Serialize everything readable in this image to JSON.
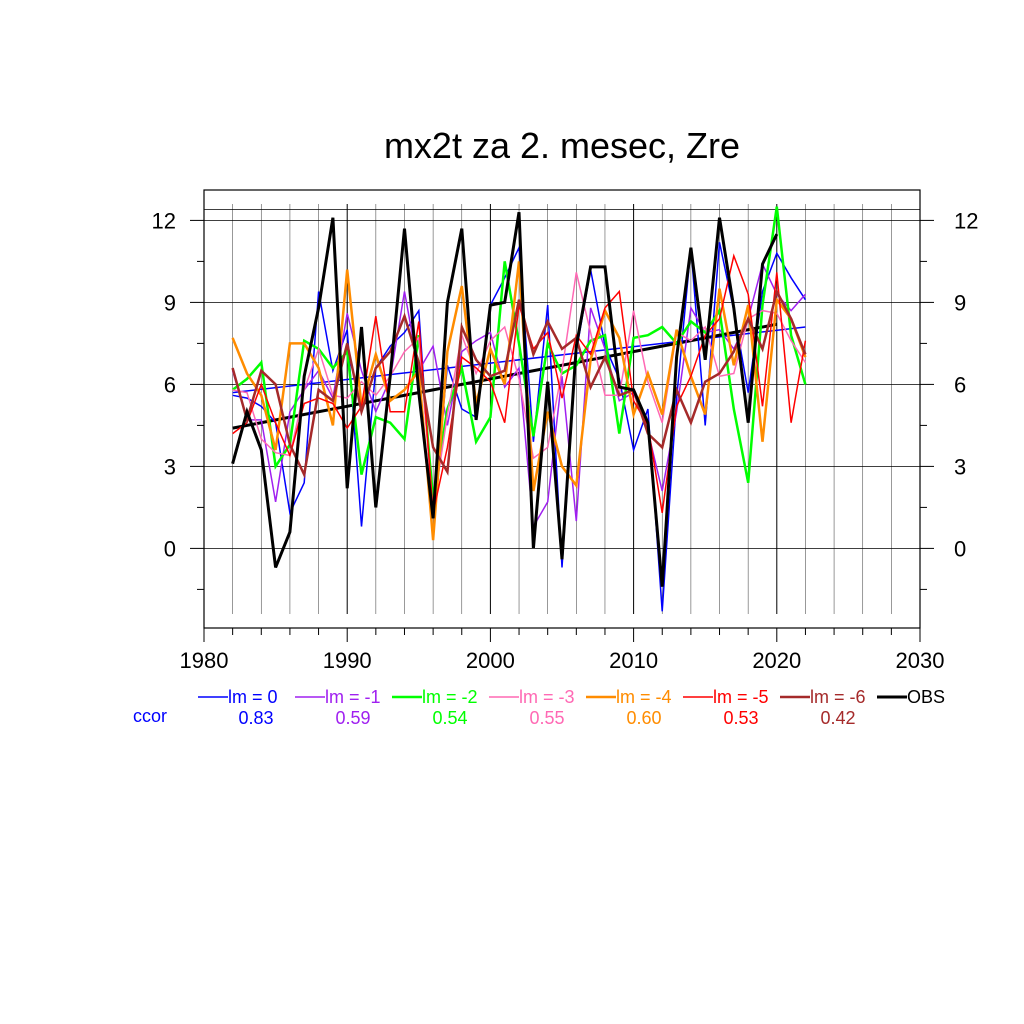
{
  "chart_data": {
    "type": "line",
    "title": "mx2t za 2. mesec, Zre",
    "xlabel": "",
    "ylabel": "",
    "xlim": [
      1980,
      2030
    ],
    "ylim": [
      -2.4,
      12.6
    ],
    "x_ticks": [
      1980,
      1990,
      2000,
      2010,
      2020,
      2030
    ],
    "y_ticks": [
      0,
      3,
      6,
      9,
      12
    ],
    "x_tick_labels": [
      "1980",
      "1990",
      "2000",
      "2010",
      "2020",
      "2030"
    ],
    "y_tick_labels": [
      "0",
      "3",
      "6",
      "9",
      "12"
    ],
    "grid": true,
    "legend_position": "bottom",
    "ccor_label": "ccor",
    "x": [
      1982,
      1983,
      1984,
      1985,
      1986,
      1987,
      1988,
      1989,
      1990,
      1991,
      1992,
      1993,
      1994,
      1995,
      1996,
      1997,
      1998,
      1999,
      2000,
      2001,
      2002,
      2003,
      2004,
      2005,
      2006,
      2007,
      2008,
      2009,
      2010,
      2011,
      2012,
      2013,
      2014,
      2015,
      2016,
      2017,
      2018,
      2019,
      2020,
      2021,
      2022
    ],
    "series": [
      {
        "name": "lm = 0",
        "color": "#0000ff",
        "width": 1.5,
        "ccor": "0.83",
        "values": [
          5.6,
          5.5,
          5.2,
          4.6,
          1.3,
          2.4,
          9.4,
          6.5,
          8.0,
          0.8,
          6.6,
          7.4,
          7.9,
          8.7,
          1.1,
          6.7,
          5.1,
          4.8,
          8.9,
          9.9,
          11.0,
          3.9,
          8.9,
          -0.7,
          7.2,
          10.2,
          7.4,
          6.2,
          3.6,
          5.1,
          -2.3,
          5.5,
          11.0,
          4.5,
          11.2,
          8.7,
          5.7,
          9.4,
          10.8,
          9.9,
          9.1
        ]
      },
      {
        "name": "lm = -1",
        "color": "#a020f0",
        "width": 1.5,
        "ccor": "0.59",
        "values": [
          6.5,
          4.7,
          4.7,
          1.7,
          5.0,
          5.8,
          6.5,
          5.5,
          8.6,
          6.5,
          5.0,
          6.2,
          9.4,
          6.5,
          7.4,
          4.5,
          7.2,
          7.6,
          7.9,
          5.9,
          6.6,
          0.8,
          1.7,
          6.3,
          1.0,
          8.8,
          7.3,
          5.4,
          5.7,
          4.3,
          2.1,
          5.0,
          8.8,
          7.9,
          8.0,
          7.3,
          8.4,
          10.4,
          9.3,
          8.7,
          9.3
        ]
      },
      {
        "name": "lm = -2",
        "color": "#00ff00",
        "width": 2.5,
        "ccor": "0.54",
        "values": [
          5.8,
          6.2,
          6.8,
          3.0,
          3.8,
          7.6,
          7.3,
          6.6,
          7.2,
          2.7,
          4.8,
          4.6,
          4.0,
          7.8,
          1.8,
          5.1,
          6.6,
          3.9,
          4.8,
          10.5,
          7.5,
          4.1,
          7.5,
          6.4,
          6.7,
          7.6,
          7.8,
          4.2,
          7.7,
          7.8,
          8.1,
          7.5,
          8.3,
          7.9,
          8.7,
          5.1,
          2.4,
          8.9,
          12.5,
          7.8,
          6.0
        ]
      },
      {
        "name": "lm = -3",
        "color": "#ff69b4",
        "width": 1.5,
        "ccor": "0.55",
        "values": [
          5.8,
          5.7,
          4.0,
          3.5,
          3.4,
          5.8,
          7.3,
          5.6,
          5.5,
          6.1,
          5.6,
          6.3,
          7.2,
          7.7,
          1.4,
          4.9,
          7.8,
          6.4,
          7.6,
          8.1,
          6.2,
          3.3,
          3.7,
          6.5,
          10.1,
          7.9,
          5.6,
          5.6,
          8.7,
          6.1,
          4.6,
          7.9,
          7.6,
          8.1,
          6.3,
          6.4,
          8.4,
          8.7,
          8.6,
          7.6,
          6.8
        ]
      },
      {
        "name": "lm = -4",
        "color": "#ff8c00",
        "width": 2.5,
        "ccor": "0.60",
        "values": [
          7.7,
          6.4,
          5.6,
          3.6,
          7.5,
          7.5,
          6.6,
          4.5,
          10.2,
          5.2,
          7.1,
          5.4,
          5.8,
          6.5,
          0.3,
          7.2,
          9.6,
          5.3,
          7.3,
          6.0,
          10.5,
          2.1,
          5.0,
          3.0,
          2.3,
          6.9,
          8.7,
          7.7,
          4.9,
          6.4,
          4.9,
          8.0,
          6.3,
          4.9,
          9.5,
          6.7,
          8.9,
          3.9,
          9.1,
          8.4,
          7.0
        ]
      },
      {
        "name": "lm = -5",
        "color": "#ff0000",
        "width": 1.5,
        "ccor": "0.53",
        "values": [
          4.2,
          4.6,
          6.0,
          4.6,
          3.4,
          5.3,
          5.5,
          5.3,
          4.4,
          5.2,
          8.5,
          5.0,
          5.0,
          8.3,
          1.3,
          3.7,
          7.0,
          6.6,
          6.1,
          4.6,
          8.9,
          7.3,
          7.9,
          5.5,
          7.8,
          7.1,
          8.8,
          9.4,
          5.4,
          4.5,
          1.3,
          5.2,
          6.3,
          7.8,
          8.4,
          10.7,
          9.3,
          5.2,
          10.1,
          4.6,
          7.6
        ]
      },
      {
        "name": "lm = -6",
        "color": "#a52a2a",
        "width": 2.5,
        "ccor": "0.42",
        "values": [
          6.6,
          4.7,
          6.5,
          6.0,
          3.8,
          2.7,
          5.8,
          5.4,
          7.5,
          5.0,
          6.6,
          7.2,
          8.5,
          6.8,
          3.7,
          2.8,
          8.1,
          6.9,
          6.3,
          6.5,
          9.1,
          7.1,
          8.3,
          7.3,
          7.7,
          5.9,
          7.0,
          5.6,
          5.8,
          4.2,
          3.7,
          5.8,
          4.6,
          6.1,
          6.4,
          7.2,
          8.4,
          7.3,
          9.4,
          8.4,
          7.1
        ]
      },
      {
        "name": "OBS",
        "color": "#000000",
        "width": 3,
        "ccor": "",
        "values": [
          3.1,
          5.0,
          3.6,
          -0.7,
          0.6,
          6.3,
          8.8,
          12.1,
          2.2,
          8.1,
          1.5,
          6.3,
          11.7,
          5.7,
          1.1,
          9.0,
          11.7,
          4.7,
          8.9,
          9.0,
          12.3,
          0.0,
          6.1,
          -0.4,
          7.4,
          10.3,
          10.3,
          5.9,
          5.8,
          4.6,
          -1.4,
          7.0,
          11.0,
          6.9,
          12.1,
          8.8,
          4.6,
          10.4,
          11.5,
          null,
          null
        ]
      }
    ],
    "trend_lines": [
      {
        "series": "lm = 0",
        "color": "#0000ff",
        "width": 1.5,
        "x": [
          1982,
          2022
        ],
        "y": [
          5.7,
          8.1
        ]
      },
      {
        "series": "OBS",
        "color": "#000000",
        "width": 3,
        "x": [
          1982,
          2020
        ],
        "y": [
          4.4,
          8.2
        ]
      }
    ]
  }
}
